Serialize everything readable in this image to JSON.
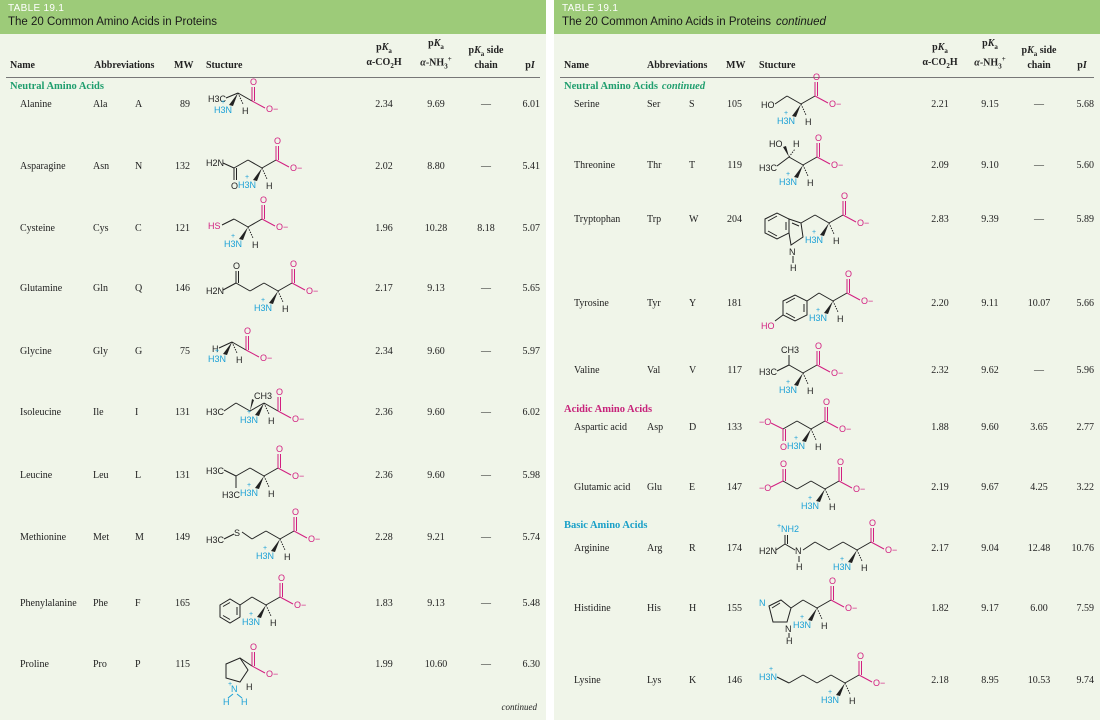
{
  "left": {
    "table_number": "TABLE 19.1",
    "title": "The 20 Common Amino Acids in Proteins",
    "title_suffix": "",
    "footer": "continued"
  },
  "right": {
    "table_number": "TABLE 19.1",
    "title": "The 20 Common Amino Acids in Proteins",
    "title_suffix": "continued"
  },
  "columns": {
    "name": "Name",
    "abbreviations": "Abbreviations",
    "mw": "MW",
    "structure": "Stucture",
    "pka_co2h": "pKa α-CO2H",
    "pka_nh3": "pKa α-NH3+",
    "pka_side": "pKa side chain",
    "pi": "pI"
  },
  "sections": {
    "neutral": "Neutral Amino Acids",
    "neutral_cont": "Neutral Amino Acids",
    "neutral_cont_suffix": "continued",
    "acidic": "Acidic Amino Acids",
    "basic": "Basic Amino Acids"
  },
  "amino_acids_left": [
    {
      "name": "Alanine",
      "abbr3": "Ala",
      "abbr1": "A",
      "mw": "89",
      "pka1": "2.34",
      "pka2": "9.69",
      "pka_side": "—",
      "pi": "6.01"
    },
    {
      "name": "Asparagine",
      "abbr3": "Asn",
      "abbr1": "N",
      "mw": "132",
      "pka1": "2.02",
      "pka2": "8.80",
      "pka_side": "—",
      "pi": "5.41"
    },
    {
      "name": "Cysteine",
      "abbr3": "Cys",
      "abbr1": "C",
      "mw": "121",
      "pka1": "1.96",
      "pka2": "10.28",
      "pka_side": "8.18",
      "pi": "5.07"
    },
    {
      "name": "Glutamine",
      "abbr3": "Gln",
      "abbr1": "Q",
      "mw": "146",
      "pka1": "2.17",
      "pka2": "9.13",
      "pka_side": "—",
      "pi": "5.65"
    },
    {
      "name": "Glycine",
      "abbr3": "Gly",
      "abbr1": "G",
      "mw": "75",
      "pka1": "2.34",
      "pka2": "9.60",
      "pka_side": "—",
      "pi": "5.97"
    },
    {
      "name": "Isoleucine",
      "abbr3": "Ile",
      "abbr1": "I",
      "mw": "131",
      "pka1": "2.36",
      "pka2": "9.60",
      "pka_side": "—",
      "pi": "6.02"
    },
    {
      "name": "Leucine",
      "abbr3": "Leu",
      "abbr1": "L",
      "mw": "131",
      "pka1": "2.36",
      "pka2": "9.60",
      "pka_side": "—",
      "pi": "5.98"
    },
    {
      "name": "Methionine",
      "abbr3": "Met",
      "abbr1": "M",
      "mw": "149",
      "pka1": "2.28",
      "pka2": "9.21",
      "pka_side": "—",
      "pi": "5.74"
    },
    {
      "name": "Phenylalanine",
      "abbr3": "Phe",
      "abbr1": "F",
      "mw": "165",
      "pka1": "1.83",
      "pka2": "9.13",
      "pka_side": "—",
      "pi": "5.48"
    },
    {
      "name": "Proline",
      "abbr3": "Pro",
      "abbr1": "P",
      "mw": "115",
      "pka1": "1.99",
      "pka2": "10.60",
      "pka_side": "—",
      "pi": "6.30"
    }
  ],
  "amino_acids_right": [
    {
      "name": "Serine",
      "abbr3": "Ser",
      "abbr1": "S",
      "mw": "105",
      "pka1": "2.21",
      "pka2": "9.15",
      "pka_side": "—",
      "pi": "5.68"
    },
    {
      "name": "Threonine",
      "abbr3": "Thr",
      "abbr1": "T",
      "mw": "119",
      "pka1": "2.09",
      "pka2": "9.10",
      "pka_side": "—",
      "pi": "5.60"
    },
    {
      "name": "Tryptophan",
      "abbr3": "Trp",
      "abbr1": "W",
      "mw": "204",
      "pka1": "2.83",
      "pka2": "9.39",
      "pka_side": "—",
      "pi": "5.89"
    },
    {
      "name": "Tyrosine",
      "abbr3": "Tyr",
      "abbr1": "Y",
      "mw": "181",
      "pka1": "2.20",
      "pka2": "9.11",
      "pka_side": "10.07",
      "pi": "5.66"
    },
    {
      "name": "Valine",
      "abbr3": "Val",
      "abbr1": "V",
      "mw": "117",
      "pka1": "2.32",
      "pka2": "9.62",
      "pka_side": "—",
      "pi": "5.96"
    },
    {
      "name": "Aspartic acid",
      "abbr3": "Asp",
      "abbr1": "D",
      "mw": "133",
      "pka1": "1.88",
      "pka2": "9.60",
      "pka_side": "3.65",
      "pi": "2.77"
    },
    {
      "name": "Glutamic acid",
      "abbr3": "Glu",
      "abbr1": "E",
      "mw": "147",
      "pka1": "2.19",
      "pka2": "9.67",
      "pka_side": "4.25",
      "pi": "3.22"
    },
    {
      "name": "Arginine",
      "abbr3": "Arg",
      "abbr1": "R",
      "mw": "174",
      "pka1": "2.17",
      "pka2": "9.04",
      "pka_side": "12.48",
      "pi": "10.76"
    },
    {
      "name": "Histidine",
      "abbr3": "His",
      "abbr1": "H",
      "mw": "155",
      "pka1": "1.82",
      "pka2": "9.17",
      "pka_side": "6.00",
      "pi": "7.59"
    },
    {
      "name": "Lysine",
      "abbr3": "Lys",
      "abbr1": "K",
      "mw": "146",
      "pka1": "2.18",
      "pka2": "8.95",
      "pka_side": "10.53",
      "pi": "9.74"
    }
  ],
  "structure_labels": {
    "h3c": "H3C",
    "h2n": "H2N",
    "h3n": "H3N",
    "h": "H",
    "o": "O",
    "o_minus": "O−",
    "minus_o": "−O",
    "plus": "+",
    "hs": "HS",
    "s": "S",
    "ch3": "CH3",
    "ho": "HO",
    "n": "N",
    "nh2_plus": "NH2",
    "nh": "N"
  },
  "colors": {
    "header_bg": "#9dcb79",
    "panel_bg": "#f0f5e9",
    "neutral_section": "#1f9e6e",
    "acidic_section": "#c7227a",
    "basic_section": "#1aa0c8",
    "carboxylate": "#d21f80",
    "ammonium": "#1aa0d6"
  }
}
